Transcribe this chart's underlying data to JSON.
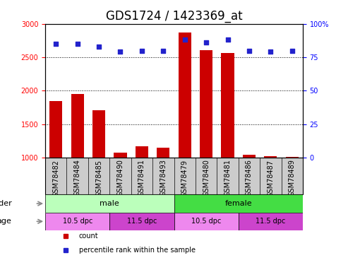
{
  "title": "GDS1724 / 1423369_at",
  "samples": [
    "GSM78482",
    "GSM78484",
    "GSM78485",
    "GSM78490",
    "GSM78491",
    "GSM78493",
    "GSM78479",
    "GSM78480",
    "GSM78481",
    "GSM78486",
    "GSM78487",
    "GSM78489"
  ],
  "counts": [
    1840,
    1950,
    1710,
    1075,
    1165,
    1145,
    2870,
    2610,
    2560,
    1040,
    1020,
    1010
  ],
  "percentiles": [
    85,
    85,
    83,
    79,
    80,
    80,
    88,
    86,
    88,
    80,
    79,
    80
  ],
  "ylim_left": [
    1000,
    3000
  ],
  "ylim_right": [
    0,
    100
  ],
  "yticks_left": [
    1000,
    1500,
    2000,
    2500,
    3000
  ],
  "yticks_right": [
    0,
    25,
    50,
    75,
    100
  ],
  "bar_color": "#cc0000",
  "dot_color": "#2222cc",
  "gender_groups": [
    {
      "label": "male",
      "start": 0,
      "end": 6,
      "color": "#bbffbb"
    },
    {
      "label": "female",
      "start": 6,
      "end": 12,
      "color": "#44dd44"
    }
  ],
  "age_groups": [
    {
      "label": "10.5 dpc",
      "start": 0,
      "end": 3,
      "color": "#ee88ee"
    },
    {
      "label": "11.5 dpc",
      "start": 3,
      "end": 6,
      "color": "#cc44cc"
    },
    {
      "label": "10.5 dpc",
      "start": 6,
      "end": 9,
      "color": "#ee88ee"
    },
    {
      "label": "11.5 dpc",
      "start": 9,
      "end": 12,
      "color": "#cc44cc"
    }
  ],
  "legend_items": [
    {
      "label": "count",
      "color": "#cc0000"
    },
    {
      "label": "percentile rank within the sample",
      "color": "#2222cc"
    }
  ],
  "background_color": "#ffffff",
  "plot_bg_color": "#ffffff",
  "xtick_bg_color": "#cccccc",
  "title_fontsize": 12,
  "tick_fontsize": 7,
  "label_fontsize": 8,
  "row_label_fontsize": 8
}
